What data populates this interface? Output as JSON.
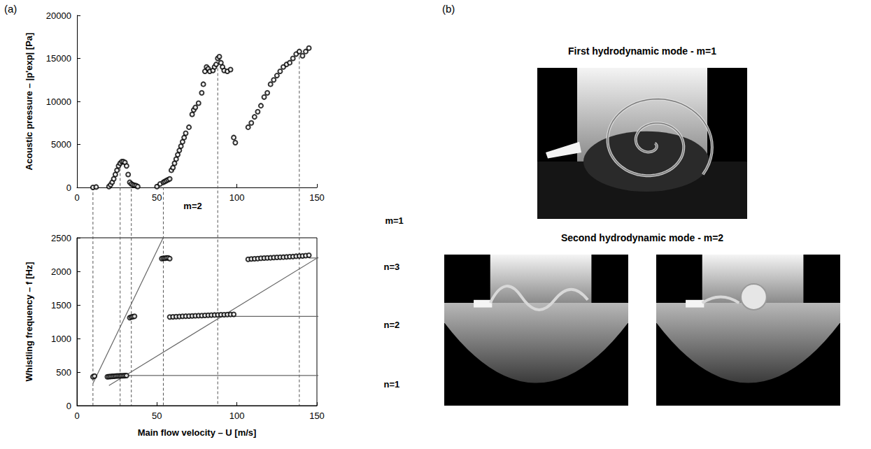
{
  "chart_data": [
    {
      "type": "scatter",
      "panel": "(a)",
      "ylabel": "Acoustic pressure – |p'exp| [Pa]",
      "x": [
        10,
        12,
        20,
        21,
        22,
        23,
        24,
        25,
        26,
        27,
        28,
        29,
        30,
        31,
        32,
        33,
        34,
        35,
        36,
        37,
        38,
        50,
        52,
        54,
        55,
        56,
        57,
        58,
        59,
        60,
        61,
        62,
        63,
        64,
        65,
        66,
        67,
        68,
        70,
        72,
        73,
        74,
        76,
        78,
        79,
        80,
        81,
        82,
        83,
        85,
        86,
        87,
        88,
        89,
        90,
        91,
        92,
        94,
        96,
        98,
        99,
        107,
        109,
        111,
        113,
        115,
        117,
        119,
        121,
        123,
        125,
        127,
        129,
        131,
        133,
        135,
        137,
        139,
        141,
        143,
        145
      ],
      "values": [
        0,
        50,
        100,
        300,
        600,
        1000,
        1500,
        2000,
        2500,
        2800,
        3000,
        3000,
        2900,
        2500,
        1500,
        600,
        400,
        300,
        250,
        200,
        100,
        100,
        400,
        600,
        700,
        800,
        900,
        1000,
        2000,
        2300,
        2800,
        3300,
        3800,
        4300,
        4800,
        5300,
        5800,
        6300,
        7000,
        8500,
        9000,
        9300,
        9800,
        11000,
        12000,
        13500,
        14000,
        13800,
        13500,
        13600,
        14000,
        14300,
        15000,
        15200,
        14500,
        14000,
        13600,
        13500,
        13700,
        5800,
        5200,
        7000,
        7500,
        8200,
        8800,
        9500,
        10500,
        11000,
        12000,
        12500,
        13000,
        13500,
        14000,
        14300,
        14500,
        15000,
        15500,
        15800,
        15300,
        15800,
        16200
      ],
      "xlim": [
        0,
        150
      ],
      "xticks": [
        0,
        50,
        100,
        150
      ],
      "ylim": [
        0,
        20000
      ],
      "yticks": [
        0,
        5000,
        10000,
        15000,
        20000
      ],
      "grid": false,
      "color": "#000000",
      "marker": "open_circle",
      "links": {
        "line_style": "dashed",
        "color": "#555555",
        "points": [
          {
            "x": 10,
            "y": 0
          },
          {
            "x": 27,
            "y": 2800
          },
          {
            "x": 34,
            "y": 400
          },
          {
            "x": 54,
            "y": 600
          },
          {
            "x": 88,
            "y": 15000
          },
          {
            "x": 139,
            "y": 15800
          }
        ]
      }
    },
    {
      "type": "scatter",
      "xlabel": "Main flow velocity – U [m/s]",
      "ylabel": "Whistling frequency – f [Hz]",
      "x": [
        10,
        11,
        19,
        20,
        21,
        22,
        23,
        24,
        25,
        26,
        27,
        28,
        29,
        30,
        31,
        33,
        34,
        35,
        36,
        53,
        54,
        55,
        56,
        57,
        58,
        58,
        60,
        62,
        64,
        66,
        68,
        70,
        72,
        74,
        76,
        78,
        80,
        82,
        84,
        86,
        88,
        90,
        92,
        94,
        96,
        98,
        107,
        109,
        111,
        113,
        115,
        117,
        119,
        121,
        123,
        125,
        127,
        129,
        131,
        133,
        135,
        137,
        139,
        141,
        143,
        145
      ],
      "values": [
        430,
        440,
        430,
        432,
        434,
        436,
        438,
        440,
        442,
        443,
        444,
        445,
        446,
        447,
        448,
        1310,
        1320,
        1325,
        1330,
        2190,
        2195,
        2195,
        2200,
        2200,
        2190,
        1320,
        1322,
        1325,
        1327,
        1330,
        1332,
        1334,
        1336,
        1338,
        1340,
        1342,
        1344,
        1346,
        1348,
        1350,
        1352,
        1354,
        1355,
        1356,
        1358,
        1360,
        2180,
        2185,
        2188,
        2190,
        2195,
        2198,
        2200,
        2202,
        2205,
        2208,
        2210,
        2212,
        2215,
        2218,
        2220,
        2225,
        2228,
        2230,
        2235,
        2240
      ],
      "xlim": [
        0,
        150
      ],
      "xticks": [
        0,
        50,
        100,
        150
      ],
      "ylim": [
        0,
        2500
      ],
      "yticks": [
        0,
        500,
        1000,
        1500,
        2000,
        2500
      ],
      "grid": false,
      "color": "#000000",
      "marker": "open_circle",
      "trend_lines": [
        {
          "label": "m=2",
          "x": [
            10,
            64
          ],
          "values": [
            330,
            3000
          ],
          "color": "#666666",
          "line_style": "solid"
        },
        {
          "label": "m=1",
          "x": [
            20,
            190
          ],
          "values": [
            300,
            2780
          ],
          "color": "#666666",
          "line_style": "solid"
        },
        {
          "label": "n=1",
          "x": [
            30,
            190
          ],
          "values": [
            450,
            450
          ],
          "color": "#666666",
          "line_style": "solid"
        },
        {
          "label": "n=2",
          "x": [
            97,
            190
          ],
          "values": [
            1330,
            1330
          ],
          "color": "#666666",
          "line_style": "solid"
        },
        {
          "label": "n=3",
          "x": [
            145,
            190
          ],
          "values": [
            2200,
            2200
          ],
          "color": "#666666",
          "line_style": "solid"
        }
      ]
    }
  ],
  "figure": {
    "panel_b": "(b)",
    "photos": [
      {
        "title": "First hydrodynamic mode - m=1",
        "images": 1
      },
      {
        "title": "Second hydrodynamic mode - m=2",
        "images": 2
      }
    ]
  }
}
